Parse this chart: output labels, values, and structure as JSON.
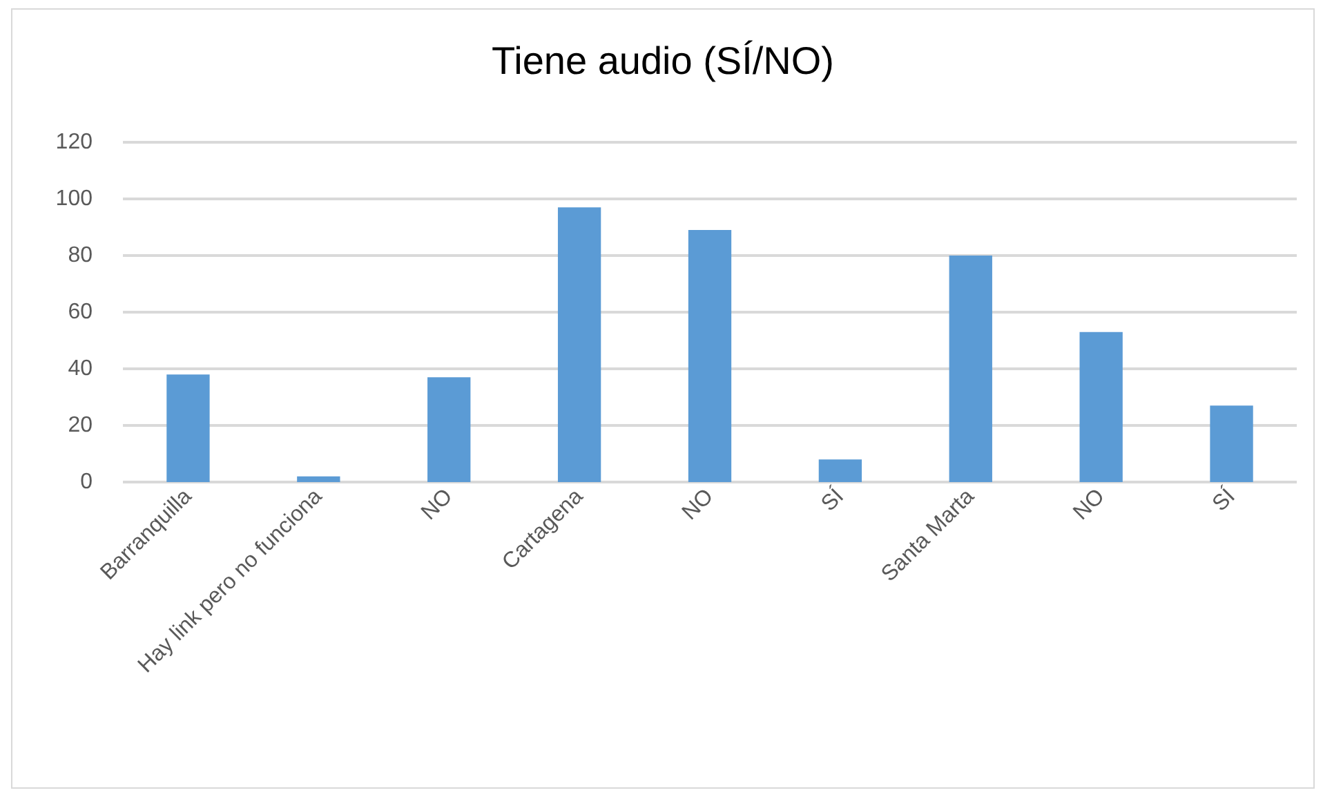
{
  "chart_data": {
    "type": "bar",
    "title": "Tiene audio (SÍ/NO)",
    "categories": [
      "Barranquilla",
      "Hay link pero no funciona",
      "NO",
      "Cartagena",
      "NO",
      "SÍ",
      "Santa Marta",
      "NO",
      "SÍ"
    ],
    "values": [
      38,
      2,
      37,
      97,
      89,
      8,
      80,
      53,
      27
    ],
    "color": "#5b9bd5",
    "ylim": [
      0,
      120
    ],
    "yticks": [
      0,
      20,
      40,
      60,
      80,
      100,
      120
    ],
    "grid": "y"
  }
}
